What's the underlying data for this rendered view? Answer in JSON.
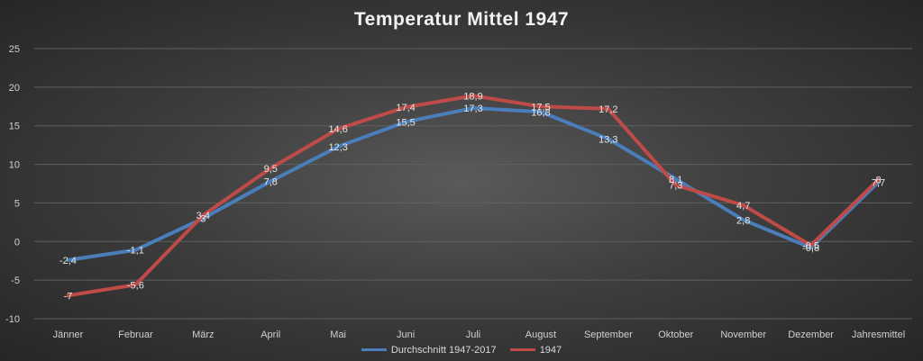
{
  "chart_data": {
    "type": "line",
    "title": "Temperatur Mittel 1947",
    "categories": [
      "Jänner",
      "Februar",
      "März",
      "April",
      "Mai",
      "Juni",
      "Juli",
      "August",
      "September",
      "Oktober",
      "November",
      "Dezember",
      "Jahresmittel"
    ],
    "ylim": [
      -10,
      25
    ],
    "yticks": [
      "25",
      "20",
      "15",
      "10",
      "5",
      "0",
      "-5",
      "-10"
    ],
    "grid": true,
    "legend_position": "bottom",
    "series": [
      {
        "name": "Durchschnitt 1947-2017",
        "color": "#4a7ebb",
        "values": [
          -2.4,
          -1.1,
          3.0,
          7.8,
          12.3,
          15.5,
          17.3,
          16.8,
          13.3,
          8.1,
          2.8,
          -0.8,
          7.7
        ],
        "labels": [
          "-2,4",
          "-1,1",
          "3",
          "7,8",
          "12,3",
          "15,5",
          "17,3",
          "16,8",
          "13,3",
          "8,1",
          "2,8",
          "-0,8",
          "7,7"
        ]
      },
      {
        "name": "1947",
        "color": "#be4b48",
        "values": [
          -7,
          -5.6,
          3.4,
          9.5,
          14.6,
          17.4,
          18.9,
          17.5,
          17.2,
          7.3,
          4.7,
          -0.5,
          8
        ],
        "labels": [
          "-7",
          "-5,6",
          "3,4",
          "9,5",
          "14,6",
          "17,4",
          "18,9",
          "17,5",
          "17,2",
          "7,3",
          "4,7",
          "-0,5",
          "8"
        ]
      }
    ]
  }
}
